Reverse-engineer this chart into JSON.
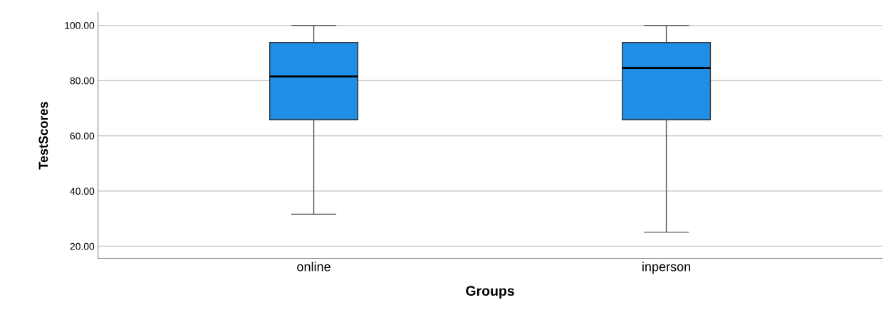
{
  "chart_data": {
    "type": "box",
    "xlabel": "Groups",
    "ylabel": "TestScores",
    "categories": [
      "online",
      "inperson"
    ],
    "boxes": [
      {
        "low": 31.6,
        "q1": 65.8,
        "median": 81.5,
        "q3": 93.8,
        "high": 100
      },
      {
        "low": 25.1,
        "q1": 65.8,
        "median": 84.6,
        "q3": 93.8,
        "high": 100
      }
    ],
    "color": "#1f8fe5",
    "ylim": [
      15.6,
      104.6
    ],
    "yticks": [
      {
        "value": 20,
        "label": "20.00"
      },
      {
        "value": 40,
        "label": "40.00"
      },
      {
        "value": 60,
        "label": "60.00"
      },
      {
        "value": 80,
        "label": "80.00"
      },
      {
        "value": 100,
        "label": "100.00"
      }
    ],
    "grid": "y"
  }
}
